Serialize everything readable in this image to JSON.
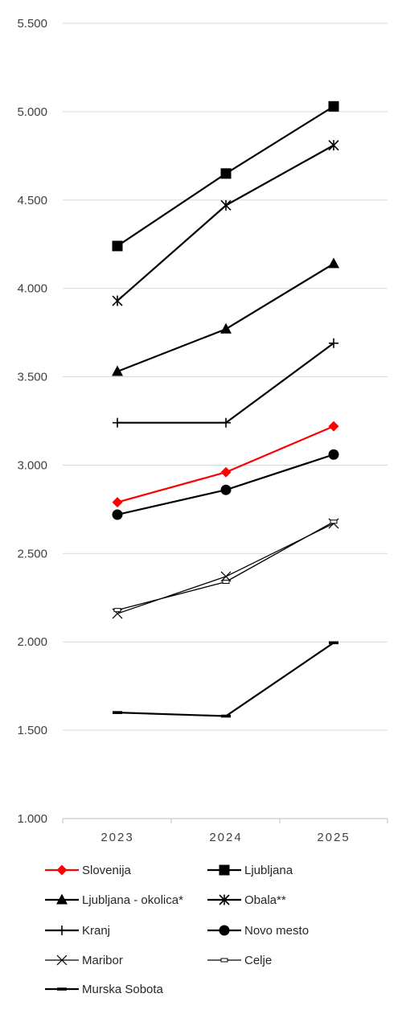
{
  "chart_data": {
    "type": "line",
    "title": "",
    "xlabel": "",
    "ylabel": "",
    "x": [
      "2023",
      "2024",
      "2025"
    ],
    "ylim": [
      1000,
      5500
    ],
    "yticks": [
      1000,
      1500,
      2000,
      2500,
      3000,
      3500,
      4000,
      4500,
      5000,
      5500
    ],
    "ytick_labels": [
      "1.000",
      "1.500",
      "2.000",
      "2.500",
      "3.000",
      "3.500",
      "4.000",
      "4.500",
      "5.000",
      "5.500"
    ],
    "grid": true,
    "legend_position": "bottom",
    "series": [
      {
        "name": "Slovenija",
        "values": [
          2790,
          2960,
          3220
        ],
        "color": "#ff0000",
        "marker": "diamond"
      },
      {
        "name": "Ljubljana",
        "values": [
          4240,
          4650,
          5030
        ],
        "color": "#000000",
        "marker": "square"
      },
      {
        "name": "Ljubljana - okolica*",
        "values": [
          3530,
          3770,
          4140
        ],
        "color": "#000000",
        "marker": "triangle"
      },
      {
        "name": "Obala**",
        "values": [
          3930,
          4470,
          4810
        ],
        "color": "#000000",
        "marker": "asterisk"
      },
      {
        "name": "Kranj",
        "values": [
          3240,
          3240,
          3690
        ],
        "color": "#000000",
        "marker": "plus"
      },
      {
        "name": "Novo mesto",
        "values": [
          2720,
          2860,
          3060
        ],
        "color": "#000000",
        "marker": "circle"
      },
      {
        "name": "Maribor",
        "values": [
          2160,
          2370,
          2670
        ],
        "color": "#000000",
        "marker": "x"
      },
      {
        "name": "Celje",
        "values": [
          2180,
          2340,
          2680
        ],
        "color": "#000000",
        "marker": "small-rect"
      },
      {
        "name": "Murska Sobota",
        "values": [
          1600,
          1580,
          1995
        ],
        "color": "#000000",
        "marker": "dash"
      }
    ]
  }
}
